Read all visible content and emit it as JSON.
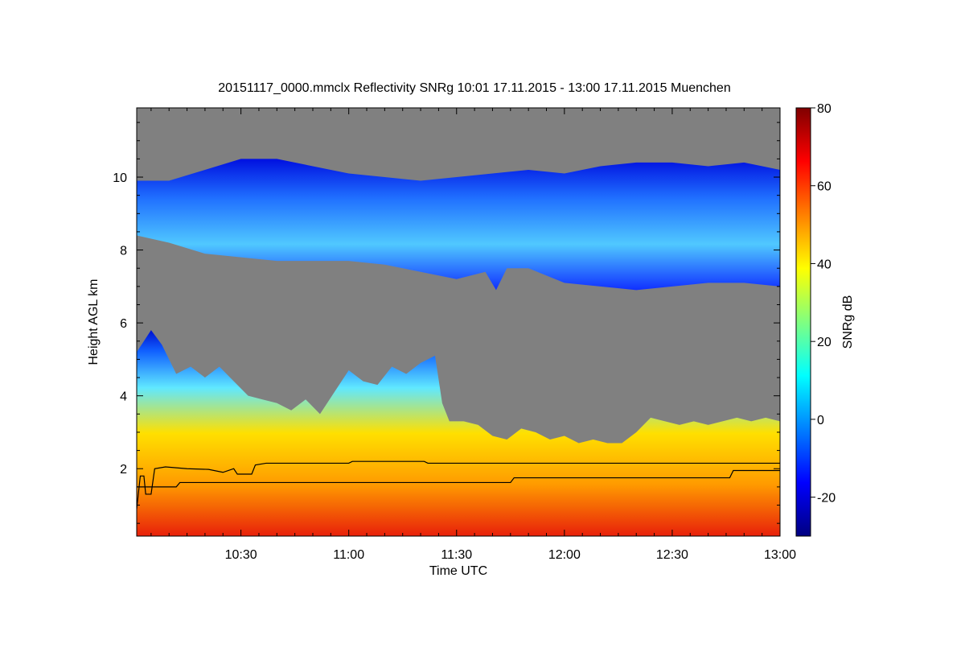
{
  "chart_data": {
    "type": "heatmap",
    "title": "20151117_0000.mmclx Reflectivity SNRg   10:01 17.11.2015 - 13:00 17.11.2015 Muenchen",
    "xlabel": "Time UTC",
    "ylabel": "Height AGL km",
    "colorbar_label": "SNRg dB",
    "x_range_min": [
      601,
      780
    ],
    "y_range_km": [
      0.15,
      11.9
    ],
    "x_ticks": [
      {
        "label": "10:30",
        "min": 630
      },
      {
        "label": "11:00",
        "min": 660
      },
      {
        "label": "11:30",
        "min": 690
      },
      {
        "label": "12:00",
        "min": 720
      },
      {
        "label": "12:30",
        "min": 750
      },
      {
        "label": "13:00",
        "min": 780
      }
    ],
    "y_ticks": [
      {
        "label": "2",
        "km": 2
      },
      {
        "label": "4",
        "km": 4
      },
      {
        "label": "6",
        "km": 6
      },
      {
        "label": "8",
        "km": 8
      },
      {
        "label": "10",
        "km": 10
      }
    ],
    "colorbar_range": [
      -30,
      80
    ],
    "colorbar_ticks": [
      {
        "label": "-20",
        "v": -20
      },
      {
        "label": "0",
        "v": 0
      },
      {
        "label": "20",
        "v": 20
      },
      {
        "label": "40",
        "v": 40
      },
      {
        "label": "60",
        "v": 60
      },
      {
        "label": "80",
        "v": 80
      }
    ],
    "colors": {
      "no_signal": "#808080",
      "colormap": [
        "#000080",
        "#0000ff",
        "#0080ff",
        "#00ffff",
        "#80ff80",
        "#ffff00",
        "#ff8000",
        "#ff0000",
        "#800000"
      ]
    },
    "upper_cloud_base_km": [
      [
        601,
        8.4
      ],
      [
        610,
        8.2
      ],
      [
        620,
        7.9
      ],
      [
        630,
        7.8
      ],
      [
        640,
        7.7
      ],
      [
        650,
        7.7
      ],
      [
        660,
        7.7
      ],
      [
        670,
        7.6
      ],
      [
        680,
        7.4
      ],
      [
        690,
        7.2
      ],
      [
        698,
        7.4
      ],
      [
        701,
        6.9
      ],
      [
        704,
        7.5
      ],
      [
        710,
        7.5
      ],
      [
        720,
        7.1
      ],
      [
        730,
        7.0
      ],
      [
        740,
        6.9
      ],
      [
        750,
        7.0
      ],
      [
        760,
        7.1
      ],
      [
        770,
        7.1
      ],
      [
        780,
        7.0
      ]
    ],
    "upper_cloud_top_km": [
      [
        601,
        9.9
      ],
      [
        610,
        9.9
      ],
      [
        620,
        10.2
      ],
      [
        630,
        10.5
      ],
      [
        640,
        10.5
      ],
      [
        650,
        10.3
      ],
      [
        660,
        10.1
      ],
      [
        670,
        10.0
      ],
      [
        680,
        9.9
      ],
      [
        690,
        10.0
      ],
      [
        700,
        10.1
      ],
      [
        710,
        10.2
      ],
      [
        720,
        10.1
      ],
      [
        730,
        10.3
      ],
      [
        740,
        10.4
      ],
      [
        750,
        10.4
      ],
      [
        760,
        10.3
      ],
      [
        770,
        10.4
      ],
      [
        780,
        10.2
      ]
    ],
    "lower_cloud_top_km": [
      [
        601,
        5.2
      ],
      [
        605,
        5.8
      ],
      [
        608,
        5.4
      ],
      [
        612,
        4.6
      ],
      [
        616,
        4.8
      ],
      [
        620,
        4.5
      ],
      [
        624,
        4.8
      ],
      [
        628,
        4.4
      ],
      [
        632,
        4.0
      ],
      [
        636,
        3.9
      ],
      [
        640,
        3.8
      ],
      [
        644,
        3.6
      ],
      [
        648,
        3.9
      ],
      [
        652,
        3.5
      ],
      [
        656,
        4.1
      ],
      [
        660,
        4.7
      ],
      [
        664,
        4.4
      ],
      [
        668,
        4.3
      ],
      [
        672,
        4.8
      ],
      [
        676,
        4.6
      ],
      [
        680,
        4.9
      ],
      [
        684,
        5.1
      ],
      [
        686,
        3.8
      ],
      [
        688,
        3.3
      ],
      [
        692,
        3.3
      ],
      [
        696,
        3.2
      ],
      [
        700,
        2.9
      ],
      [
        704,
        2.8
      ],
      [
        708,
        3.1
      ],
      [
        712,
        3.0
      ],
      [
        716,
        2.8
      ],
      [
        720,
        2.9
      ],
      [
        724,
        2.7
      ],
      [
        728,
        2.8
      ],
      [
        732,
        2.7
      ],
      [
        736,
        2.7
      ],
      [
        740,
        3.0
      ],
      [
        744,
        3.4
      ],
      [
        748,
        3.3
      ],
      [
        752,
        3.2
      ],
      [
        756,
        3.3
      ],
      [
        760,
        3.2
      ],
      [
        764,
        3.3
      ],
      [
        768,
        3.4
      ],
      [
        772,
        3.3
      ],
      [
        776,
        3.4
      ],
      [
        780,
        3.3
      ]
    ],
    "boundary_line_upper_km": [
      [
        601,
        0.9
      ],
      [
        602,
        1.8
      ],
      [
        603,
        1.8
      ],
      [
        603.5,
        1.3
      ],
      [
        605,
        1.3
      ],
      [
        606,
        2.0
      ],
      [
        609,
        2.05
      ],
      [
        615,
        2.0
      ],
      [
        621,
        1.98
      ],
      [
        625,
        1.9
      ],
      [
        628,
        2.0
      ],
      [
        629,
        1.85
      ],
      [
        633,
        1.85
      ],
      [
        634,
        2.1
      ],
      [
        637,
        2.15
      ],
      [
        660,
        2.15
      ],
      [
        661,
        2.2
      ],
      [
        681,
        2.2
      ],
      [
        682,
        2.15
      ],
      [
        780,
        2.15
      ]
    ],
    "boundary_line_lower_km": [
      [
        601,
        1.5
      ],
      [
        612,
        1.5
      ],
      [
        613,
        1.62
      ],
      [
        705,
        1.62
      ],
      [
        706,
        1.75
      ],
      [
        766,
        1.75
      ],
      [
        767,
        1.95
      ],
      [
        780,
        1.95
      ]
    ]
  }
}
